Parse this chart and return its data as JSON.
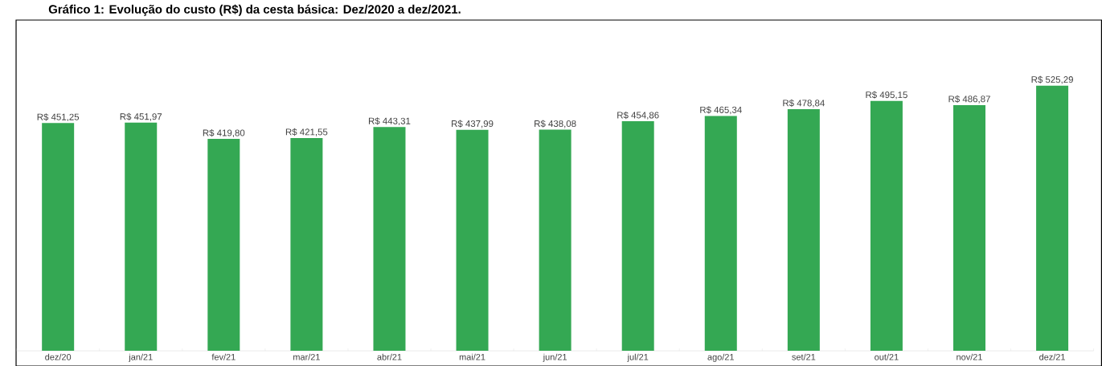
{
  "chart_data": {
    "type": "bar",
    "title": "Gráfico 1: Evolução do custo (R$) da cesta básica: Dez/2020 a dez/2021.",
    "categories": [
      "dez/20",
      "jan/21",
      "fev/21",
      "mar/21",
      "abr/21",
      "mai/21",
      "jun/21",
      "jul/21",
      "ago/21",
      "set/21",
      "out/21",
      "nov/21",
      "dez/21"
    ],
    "values": [
      451.25,
      451.97,
      419.8,
      421.55,
      443.31,
      437.99,
      438.08,
      454.86,
      465.34,
      478.84,
      495.15,
      486.87,
      525.29
    ],
    "value_labels": [
      "R$ 451,25",
      "R$ 451,97",
      "R$ 419,80",
      "R$ 421,55",
      "R$ 443,31",
      "R$ 437,99",
      "R$ 438,08",
      "R$ 454,86",
      "R$ 465,34",
      "R$ 478,84",
      "R$ 495,15",
      "R$ 486,87",
      "R$ 525,29"
    ],
    "color": "#34a853",
    "tick_labels": "x"
  }
}
